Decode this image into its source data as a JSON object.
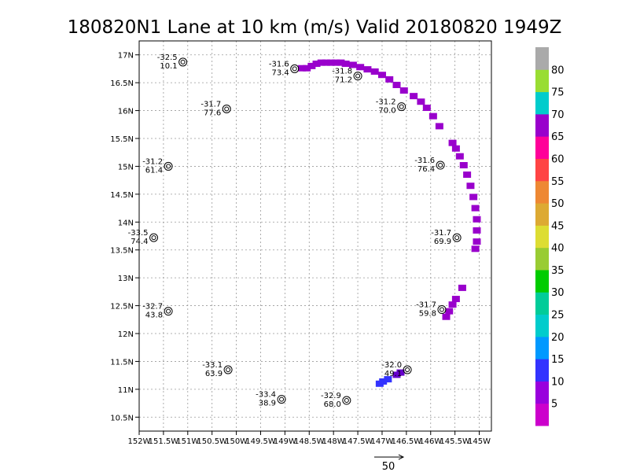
{
  "chart_data": {
    "type": "scatter",
    "title": "180820N1 Lane at 10 km (m/s) Valid 20180820  1949Z",
    "xlim": [
      -152,
      -144.75
    ],
    "ylim": [
      10.25,
      17.25
    ],
    "x_ticks": [
      {
        "value": -152,
        "label": "152W"
      },
      {
        "value": -151.5,
        "label": "151.5W"
      },
      {
        "value": -151,
        "label": "151W"
      },
      {
        "value": -150.5,
        "label": "150.5W"
      },
      {
        "value": -150,
        "label": "150W"
      },
      {
        "value": -149.5,
        "label": "149.5W"
      },
      {
        "value": -149,
        "label": "149W"
      },
      {
        "value": -148.5,
        "label": "148.5W"
      },
      {
        "value": -148,
        "label": "148W"
      },
      {
        "value": -147.5,
        "label": "147.5W"
      },
      {
        "value": -147,
        "label": "147W"
      },
      {
        "value": -146.5,
        "label": "146.5W"
      },
      {
        "value": -146,
        "label": "146W"
      },
      {
        "value": -145.5,
        "label": "145.5W"
      },
      {
        "value": -145,
        "label": "145W"
      }
    ],
    "y_ticks": [
      {
        "value": 10.5,
        "label": "10.5N"
      },
      {
        "value": 11,
        "label": "11N"
      },
      {
        "value": 11.5,
        "label": "11.5N"
      },
      {
        "value": 12,
        "label": "12N"
      },
      {
        "value": 12.5,
        "label": "12.5N"
      },
      {
        "value": 13,
        "label": "13N"
      },
      {
        "value": 13.5,
        "label": "13.5N"
      },
      {
        "value": 14,
        "label": "14N"
      },
      {
        "value": 14.5,
        "label": "14.5N"
      },
      {
        "value": 15,
        "label": "15N"
      },
      {
        "value": 15.5,
        "label": "15.5N"
      },
      {
        "value": 16,
        "label": "16N"
      },
      {
        "value": 16.5,
        "label": "16.5N"
      },
      {
        "value": 17,
        "label": "17N"
      }
    ],
    "grid": true,
    "dropsondes": [
      {
        "lon": -151.1,
        "lat": 16.87,
        "temp": "-32.5",
        "wind": "10.1"
      },
      {
        "lon": -148.8,
        "lat": 16.75,
        "temp": "-31.6",
        "wind": "73.4"
      },
      {
        "lon": -147.5,
        "lat": 16.62,
        "temp": "-31.8",
        "wind": "71.2"
      },
      {
        "lon": -150.2,
        "lat": 16.03,
        "temp": "-31.7",
        "wind": "77.6"
      },
      {
        "lon": -146.6,
        "lat": 16.07,
        "temp": "-31.2",
        "wind": "70.0"
      },
      {
        "lon": -151.4,
        "lat": 15.0,
        "temp": "-31.2",
        "wind": "61.4"
      },
      {
        "lon": -145.8,
        "lat": 15.02,
        "temp": "-31.6",
        "wind": "76.4"
      },
      {
        "lon": -151.7,
        "lat": 13.72,
        "temp": "-33.5",
        "wind": "74.4"
      },
      {
        "lon": -145.46,
        "lat": 13.72,
        "temp": "-31.7",
        "wind": "69.9"
      },
      {
        "lon": -151.4,
        "lat": 12.4,
        "temp": "-32.7",
        "wind": "43.8"
      },
      {
        "lon": -145.77,
        "lat": 12.43,
        "temp": "-31.7",
        "wind": "59.8"
      },
      {
        "lon": -150.17,
        "lat": 11.35,
        "temp": "-33.1",
        "wind": "63.9"
      },
      {
        "lon": -146.48,
        "lat": 11.35,
        "temp": "-32.0",
        "wind": "49.1"
      },
      {
        "lon": -149.07,
        "lat": 10.82,
        "temp": "-33.4",
        "wind": "38.9"
      },
      {
        "lon": -147.73,
        "lat": 10.8,
        "temp": "-32.9",
        "wind": "68.0"
      }
    ],
    "sfmr_swath": [
      {
        "lon": -148.65,
        "lat": 16.76,
        "color": "#9900cc"
      },
      {
        "lon": -148.55,
        "lat": 16.76,
        "color": "#9900cc"
      },
      {
        "lon": -148.45,
        "lat": 16.8,
        "color": "#9900cc"
      },
      {
        "lon": -148.35,
        "lat": 16.84,
        "color": "#9900cc"
      },
      {
        "lon": -148.25,
        "lat": 16.86,
        "color": "#9900cc"
      },
      {
        "lon": -148.15,
        "lat": 16.86,
        "color": "#9900cc"
      },
      {
        "lon": -148.05,
        "lat": 16.86,
        "color": "#9900cc"
      },
      {
        "lon": -147.95,
        "lat": 16.86,
        "color": "#9900cc"
      },
      {
        "lon": -147.85,
        "lat": 16.86,
        "color": "#9900cc"
      },
      {
        "lon": -147.75,
        "lat": 16.84,
        "color": "#9900cc"
      },
      {
        "lon": -147.6,
        "lat": 16.82,
        "color": "#9900cc"
      },
      {
        "lon": -147.45,
        "lat": 16.78,
        "color": "#9900cc"
      },
      {
        "lon": -147.3,
        "lat": 16.74,
        "color": "#9900cc"
      },
      {
        "lon": -147.15,
        "lat": 16.7,
        "color": "#9900cc"
      },
      {
        "lon": -147.0,
        "lat": 16.64,
        "color": "#9900cc"
      },
      {
        "lon": -146.85,
        "lat": 16.56,
        "color": "#9900cc"
      },
      {
        "lon": -146.7,
        "lat": 16.46,
        "color": "#9900cc"
      },
      {
        "lon": -146.55,
        "lat": 16.36,
        "color": "#9900cc"
      },
      {
        "lon": -146.35,
        "lat": 16.26,
        "color": "#9900cc"
      },
      {
        "lon": -146.2,
        "lat": 16.16,
        "color": "#9900cc"
      },
      {
        "lon": -146.08,
        "lat": 16.05,
        "color": "#9900cc"
      },
      {
        "lon": -145.95,
        "lat": 15.9,
        "color": "#9900cc"
      },
      {
        "lon": -145.82,
        "lat": 15.72,
        "color": "#9900cc"
      },
      {
        "lon": -145.55,
        "lat": 15.42,
        "color": "#9900cc"
      },
      {
        "lon": -145.48,
        "lat": 15.32,
        "color": "#9900cc"
      },
      {
        "lon": -145.4,
        "lat": 15.18,
        "color": "#9900cc"
      },
      {
        "lon": -145.32,
        "lat": 15.02,
        "color": "#9900cc"
      },
      {
        "lon": -145.25,
        "lat": 14.85,
        "color": "#9900cc"
      },
      {
        "lon": -145.18,
        "lat": 14.65,
        "color": "#9900cc"
      },
      {
        "lon": -145.12,
        "lat": 14.45,
        "color": "#9900cc"
      },
      {
        "lon": -145.08,
        "lat": 14.25,
        "color": "#9900cc"
      },
      {
        "lon": -145.05,
        "lat": 14.05,
        "color": "#9900cc"
      },
      {
        "lon": -145.05,
        "lat": 13.85,
        "color": "#9900cc"
      },
      {
        "lon": -145.05,
        "lat": 13.65,
        "color": "#9900cc"
      },
      {
        "lon": -145.08,
        "lat": 13.52,
        "color": "#9900cc"
      },
      {
        "lon": -145.35,
        "lat": 12.82,
        "color": "#9900cc"
      },
      {
        "lon": -145.48,
        "lat": 12.62,
        "color": "#9900cc"
      },
      {
        "lon": -145.55,
        "lat": 12.52,
        "color": "#9900cc"
      },
      {
        "lon": -145.62,
        "lat": 12.4,
        "color": "#9900cc"
      },
      {
        "lon": -145.68,
        "lat": 12.3,
        "color": "#9900cc"
      },
      {
        "lon": -146.62,
        "lat": 11.3,
        "color": "#6600cc"
      },
      {
        "lon": -146.7,
        "lat": 11.26,
        "color": "#6600cc"
      },
      {
        "lon": -146.88,
        "lat": 11.18,
        "color": "#3333ff"
      },
      {
        "lon": -146.98,
        "lat": 11.14,
        "color": "#3333ff"
      },
      {
        "lon": -147.05,
        "lat": 11.1,
        "color": "#3333ff"
      }
    ],
    "scale_arrow": {
      "label": "50"
    },
    "colorbar": {
      "labels": [
        "5",
        "10",
        "15",
        "20",
        "25",
        "30",
        "35",
        "40",
        "45",
        "50",
        "55",
        "60",
        "65",
        "70",
        "75",
        "80"
      ],
      "colors": [
        "#cc00cc",
        "#9900dd",
        "#3333ff",
        "#0099ff",
        "#00cccc",
        "#00cc99",
        "#00cc00",
        "#99cc33",
        "#dddd33",
        "#ddaa33",
        "#ee8833",
        "#ff4444",
        "#ff0099",
        "#9900cc",
        "#00cccc",
        "#99dd33",
        "#aaaaaa"
      ]
    }
  }
}
